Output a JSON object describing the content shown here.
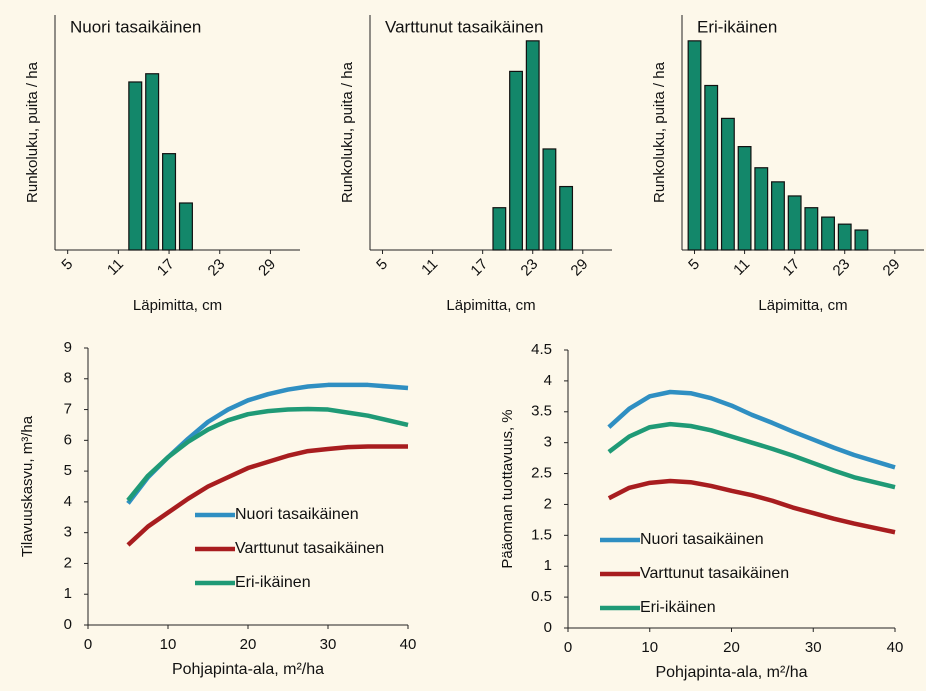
{
  "chart_data": [
    {
      "type": "bar",
      "title": "Nuori tasaikäinen",
      "y_label": "Runkoluku, puita / ha",
      "x_label": "Läpimitta, cm",
      "categories": [
        "5",
        null,
        null,
        "11",
        null,
        null,
        "17",
        null,
        null,
        "23",
        null,
        null,
        "29",
        null
      ],
      "values": [
        null,
        null,
        null,
        null,
        71.5,
        75,
        41,
        20,
        null,
        null,
        null,
        null,
        null,
        null
      ],
      "color": "#13876a",
      "ylim": [
        0,
        100
      ]
    },
    {
      "type": "bar",
      "title": "Varttunut tasaikäinen",
      "y_label": "Runkoluku, puita / ha",
      "x_label": "Läpimitta, cm",
      "categories": [
        "5",
        null,
        null,
        "11",
        null,
        null,
        "17",
        null,
        null,
        "23",
        null,
        null,
        "29",
        null
      ],
      "values": [
        null,
        null,
        null,
        null,
        null,
        null,
        null,
        18,
        76,
        89,
        43,
        27,
        null,
        null
      ],
      "color": "#13876a",
      "ylim": [
        0,
        100
      ]
    },
    {
      "type": "bar",
      "title": "Eri-ikäinen",
      "y_label": "Runkoluku, puita / ha",
      "x_label": "Läpimitta, cm",
      "categories": [
        "5",
        null,
        null,
        "11",
        null,
        null,
        "17",
        null,
        null,
        "23",
        null,
        null,
        "29",
        null
      ],
      "values": [
        89,
        70,
        56,
        44,
        35,
        29,
        23,
        18,
        14,
        11,
        8.5,
        null,
        null,
        null
      ],
      "color": "#13876a",
      "ylim": [
        0,
        100
      ]
    },
    {
      "type": "line",
      "y_label": "Tilavuuskasvu, m³/ha",
      "x_label": "Pohjapinta-ala, m²/ha",
      "x": [
        5,
        7.5,
        10,
        12.5,
        15,
        17.5,
        20,
        22.5,
        25,
        27.5,
        30,
        32.5,
        35,
        40
      ],
      "series": [
        {
          "name": "Nuori tasaikäinen",
          "color": "#2f8fc2",
          "values": [
            3.95,
            4.8,
            5.45,
            6.05,
            6.6,
            7.0,
            7.3,
            7.5,
            7.65,
            7.75,
            7.8,
            7.8,
            7.8,
            7.7
          ]
        },
        {
          "name": "Varttunut tasaikäinen",
          "color": "#a81d1f",
          "values": [
            2.6,
            3.2,
            3.65,
            4.1,
            4.5,
            4.8,
            5.1,
            5.3,
            5.5,
            5.65,
            5.72,
            5.78,
            5.8,
            5.8
          ]
        },
        {
          "name": "Eri-ikäinen",
          "color": "#1f9a76",
          "values": [
            4.05,
            4.85,
            5.45,
            5.95,
            6.35,
            6.65,
            6.85,
            6.95,
            7.0,
            7.02,
            7.0,
            6.9,
            6.8,
            6.5
          ]
        }
      ],
      "xlim": [
        0,
        40
      ],
      "xticks": [
        0,
        10,
        20,
        30,
        40
      ],
      "ylim": [
        0,
        9
      ],
      "yticks": [
        0,
        1,
        2,
        3,
        4,
        5,
        6,
        7,
        8,
        9
      ],
      "legend": "lower right"
    },
    {
      "type": "line",
      "y_label": "Pääoman tuottavuus, %",
      "x_label": "Pohjapinta-ala, m²/ha",
      "x": [
        5,
        7.5,
        10,
        12.5,
        15,
        17.5,
        20,
        22.5,
        25,
        27.5,
        30,
        32.5,
        35,
        40
      ],
      "series": [
        {
          "name": "Nuori tasaikäinen",
          "color": "#2f8fc2",
          "values": [
            3.25,
            3.55,
            3.75,
            3.82,
            3.8,
            3.72,
            3.6,
            3.45,
            3.32,
            3.18,
            3.05,
            2.92,
            2.8,
            2.6
          ]
        },
        {
          "name": "Varttunut tasaikäinen",
          "color": "#a81d1f",
          "values": [
            2.1,
            2.27,
            2.35,
            2.38,
            2.36,
            2.3,
            2.22,
            2.15,
            2.06,
            1.95,
            1.86,
            1.77,
            1.69,
            1.55
          ]
        },
        {
          "name": "Eri-ikäinen",
          "color": "#1f9a76",
          "values": [
            2.85,
            3.1,
            3.25,
            3.3,
            3.27,
            3.2,
            3.1,
            3.0,
            2.9,
            2.79,
            2.67,
            2.55,
            2.44,
            2.28
          ]
        }
      ],
      "xlim": [
        0,
        40
      ],
      "xticks": [
        0,
        10,
        20,
        30,
        40
      ],
      "ylim": [
        0,
        4.5
      ],
      "yticks": [
        0,
        0.5,
        1,
        1.5,
        2,
        2.5,
        3,
        3.5,
        4,
        4.5
      ],
      "legend": "lower right"
    }
  ]
}
